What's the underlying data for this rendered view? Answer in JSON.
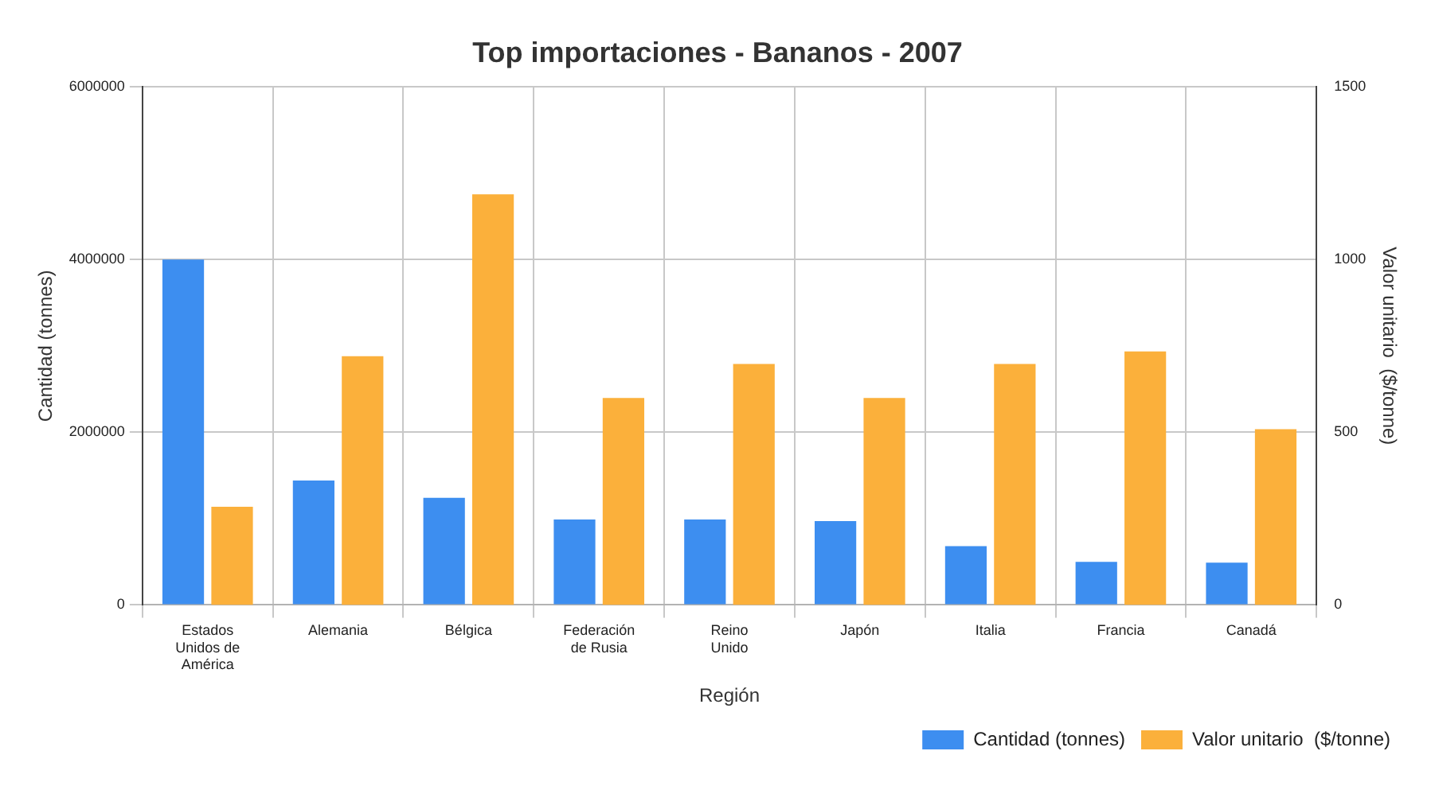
{
  "chart_data": {
    "type": "bar",
    "title": "Top importaciones - Bananos - 2007",
    "xlabel": "Región",
    "ylabel": "Cantidad (tonnes)",
    "y2label": "Valor unitario  ($/tonne)",
    "categories": [
      "Estados Unidos de América",
      "Alemania",
      "Bélgica",
      "Federación de Rusia",
      "Reino Unido",
      "Japón",
      "Italia",
      "Francia",
      "Canadá"
    ],
    "series": [
      {
        "name": "Cantidad (tonnes)",
        "color": "#3d8ef0",
        "values": [
          4000000,
          1440000,
          1240000,
          990000,
          990000,
          970000,
          680000,
          500000,
          490000
        ]
      },
      {
        "name": "Valor unitario  ($/tonne)",
        "color": "#fbb03b",
        "axis": "y2",
        "values": [
          284,
          720,
          1189,
          599,
          698,
          599,
          698,
          734,
          509
        ]
      }
    ],
    "ylim": [
      0,
      6000000
    ],
    "yticks": [
      0,
      2000000,
      4000000,
      6000000
    ],
    "y2lim": [
      0,
      1500
    ],
    "y2ticks": [
      0,
      500,
      1000,
      1500
    ],
    "grid": true,
    "legend": "bottom right"
  }
}
